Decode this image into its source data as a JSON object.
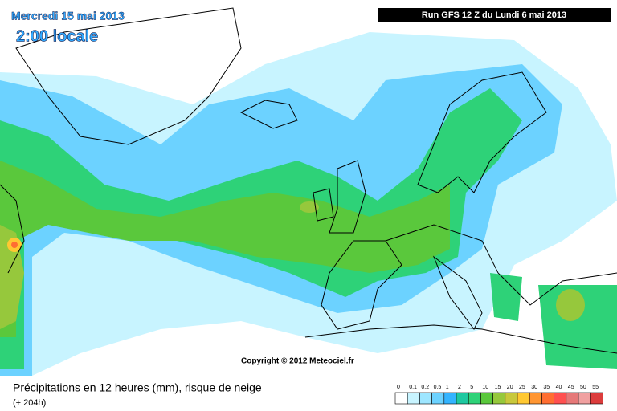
{
  "header": {
    "date": "Mercredi 15 mai 2013",
    "time": "2:00 locale",
    "run": "Run GFS 12 Z du Lundi 6 mai 2013"
  },
  "copyright": "Copyright © 2012 Meteociel.fr",
  "footer": {
    "title": "Précipitations en 12 heures (mm), risque de neige",
    "lead": "(+ 204h)"
  },
  "legend": {
    "labels": [
      0,
      0.1,
      0.2,
      0.5,
      1,
      2,
      5,
      10,
      15,
      20,
      25,
      30,
      35,
      40,
      45,
      50,
      55
    ],
    "colors": [
      "#ffffff",
      "#c8f4ff",
      "#9ee6ff",
      "#6cd2ff",
      "#33b4ff",
      "#1ec8a0",
      "#2ed278",
      "#5ac83c",
      "#96c83c",
      "#c8c83c",
      "#ffc832",
      "#ff9632",
      "#ff6e32",
      "#ff5050",
      "#e67878",
      "#f0a0a0",
      "#dc3c3c"
    ]
  }
}
